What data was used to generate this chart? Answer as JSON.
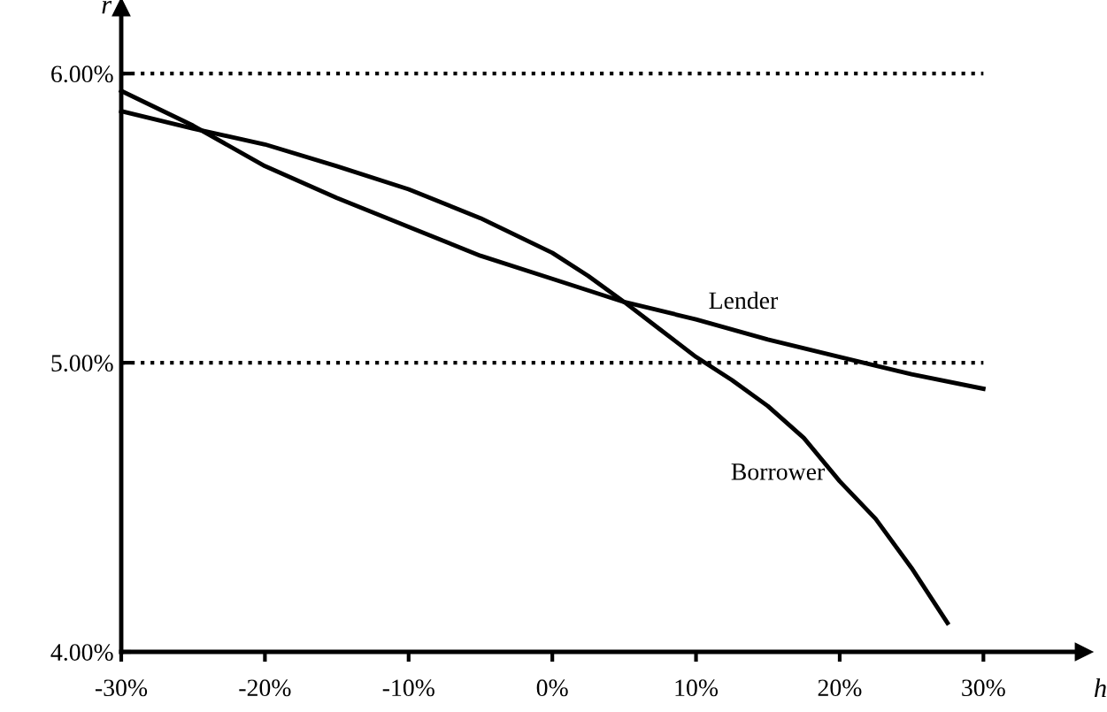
{
  "chart_data": {
    "type": "line",
    "xlabel": "h",
    "ylabel": "r",
    "xlim": [
      -30,
      37
    ],
    "ylim": [
      4,
      6.23
    ],
    "xticks": [
      {
        "value": -30,
        "label": "-30%"
      },
      {
        "value": -20,
        "label": "-20%"
      },
      {
        "value": -10,
        "label": "-10%"
      },
      {
        "value": 0,
        "label": "0%"
      },
      {
        "value": 10,
        "label": "10%"
      },
      {
        "value": 20,
        "label": "20%"
      },
      {
        "value": 30,
        "label": "30%"
      }
    ],
    "yticks": [
      {
        "value": 4,
        "label": "4.00%"
      },
      {
        "value": 5,
        "label": "5.00%"
      },
      {
        "value": 6,
        "label": "6.00%"
      }
    ],
    "ref_lines": [
      {
        "axis": "y",
        "value": 6,
        "color": "#000000",
        "line_style": "dotted"
      },
      {
        "axis": "y",
        "value": 5,
        "color": "#000000",
        "line_style": "dotted"
      }
    ],
    "series": [
      {
        "name": "Borrower",
        "color": "#000000",
        "x": [
          -30,
          -25,
          -20,
          -15,
          -10,
          -5,
          0,
          2.5,
          5,
          7.5,
          10,
          12.5,
          15,
          17.5,
          20,
          22.5,
          25,
          27.5
        ],
        "values": [
          5.87,
          5.81,
          5.755,
          5.68,
          5.6,
          5.5,
          5.38,
          5.3,
          5.21,
          5.115,
          5.02,
          4.94,
          4.85,
          4.74,
          4.59,
          4.46,
          4.29,
          4.1
        ]
      },
      {
        "name": "Lender",
        "color": "#000000",
        "x": [
          -30,
          -25,
          -20,
          -15,
          -10,
          -5,
          0,
          5,
          10,
          15,
          20,
          25,
          30
        ],
        "values": [
          5.94,
          5.82,
          5.68,
          5.57,
          5.47,
          5.37,
          5.29,
          5.21,
          5.15,
          5.08,
          5.02,
          4.96,
          4.91
        ]
      }
    ],
    "marker": "none",
    "line_style": "solid",
    "grid": false,
    "legend": false
  }
}
